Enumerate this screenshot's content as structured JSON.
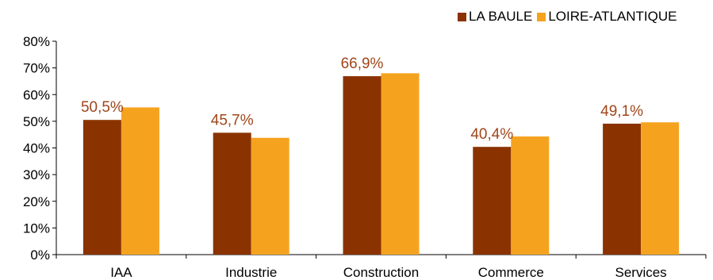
{
  "chart_data": {
    "type": "bar",
    "categories": [
      "IAA",
      "Industrie",
      "Construction",
      "Commerce",
      "Services"
    ],
    "series": [
      {
        "name": "LA BAULE",
        "color": "#8B3300",
        "values": [
          50.5,
          45.7,
          66.9,
          40.4,
          49.1
        ]
      },
      {
        "name": "LOIRE-ATLANTIQUE",
        "color": "#F5A31F",
        "values": [
          55.2,
          43.8,
          68.0,
          44.3,
          49.6
        ]
      }
    ],
    "data_labels": [
      "50,5%",
      "45,7%",
      "66,9%",
      "40,4%",
      "49,1%"
    ],
    "data_label_color": "#A0461A",
    "ylim": [
      0,
      80
    ],
    "yticks": [
      "0%",
      "10%",
      "20%",
      "30%",
      "40%",
      "50%",
      "60%",
      "70%",
      "80%"
    ],
    "grid": false,
    "legend_position": "top-right"
  }
}
